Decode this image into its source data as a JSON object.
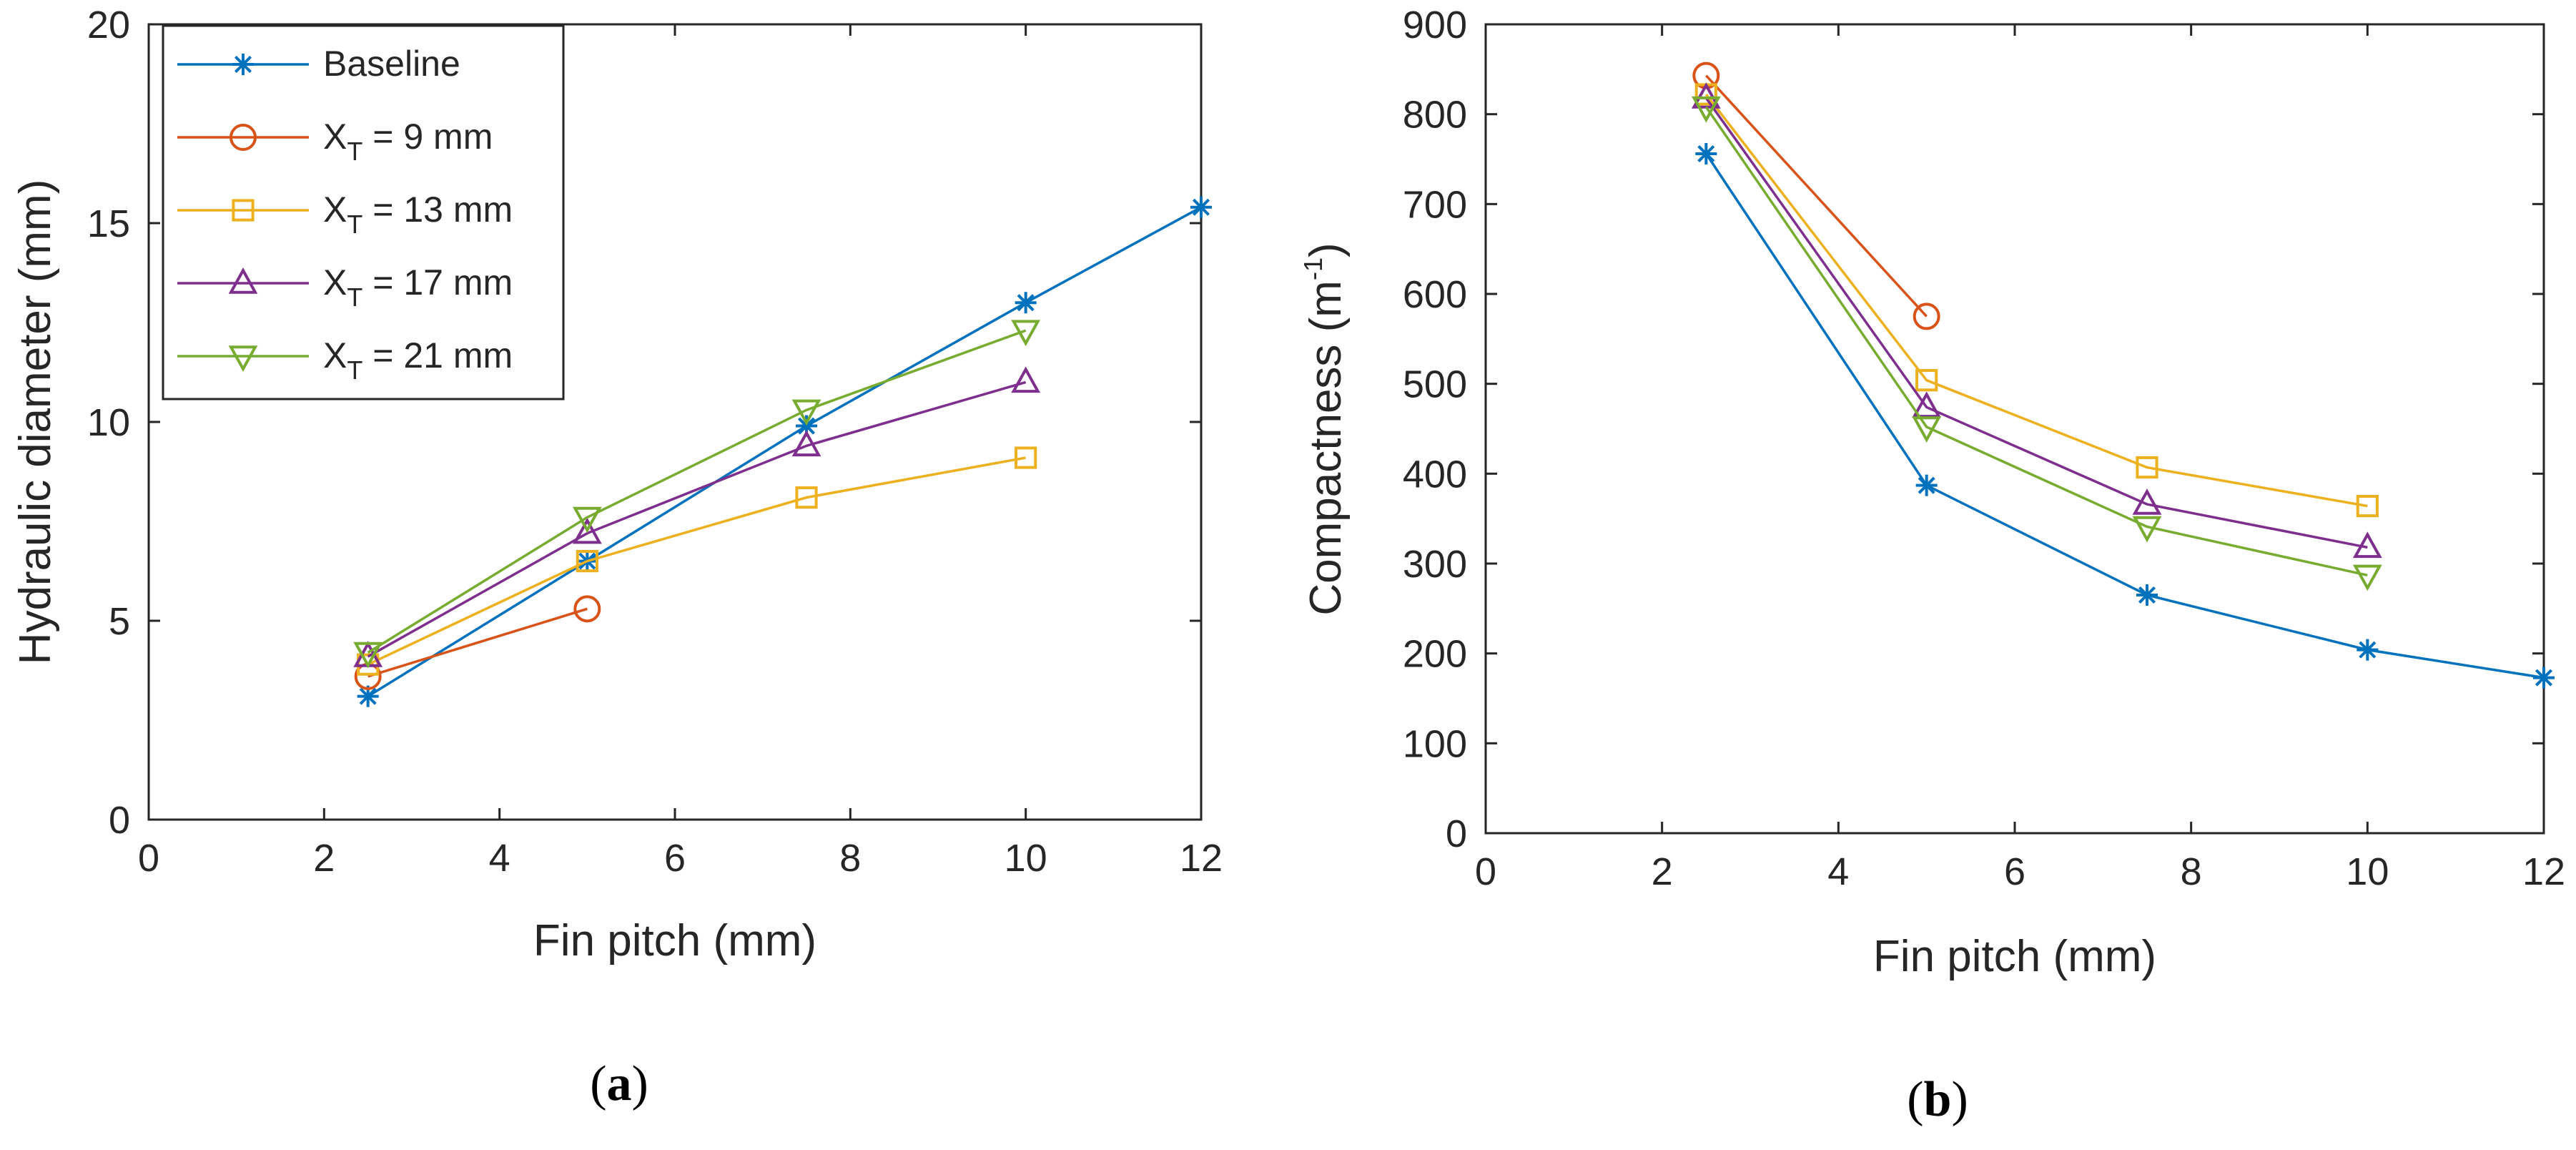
{
  "chart_data": [
    {
      "id": "a",
      "type": "line",
      "caption_letter": "a",
      "xlabel": "Fin pitch (mm)",
      "ylabel": "Hydraulic diameter (mm)",
      "xlim": [
        0,
        12
      ],
      "ylim": [
        0,
        20
      ],
      "xticks": [
        "0",
        "2",
        "4",
        "6",
        "8",
        "10",
        "12"
      ],
      "yticks": [
        "0",
        "5",
        "10",
        "15",
        "20"
      ],
      "grid": false,
      "legend": {
        "position": "top-left",
        "entries": [
          {
            "label": "Baseline"
          },
          {
            "prefix": "X",
            "sub": "T",
            "suffix": " = 9 mm"
          },
          {
            "prefix": "X",
            "sub": "T",
            "suffix": " = 13 mm"
          },
          {
            "prefix": "X",
            "sub": "T",
            "suffix": " = 17 mm"
          },
          {
            "prefix": "X",
            "sub": "T",
            "suffix": " = 21 mm"
          }
        ]
      },
      "series": [
        {
          "name": "Baseline",
          "color": "#0072BD",
          "marker": "asterisk",
          "x": [
            2.5,
            5,
            7.5,
            10,
            12
          ],
          "y": [
            3.1,
            6.5,
            9.9,
            13.0,
            15.4
          ]
        },
        {
          "name": "X_T = 9 mm",
          "color": "#D95319",
          "marker": "circle",
          "x": [
            2.5,
            5
          ],
          "y": [
            3.6,
            5.3
          ]
        },
        {
          "name": "X_T = 13 mm",
          "color": "#EDB120",
          "marker": "square",
          "x": [
            2.5,
            5,
            7.5,
            10
          ],
          "y": [
            3.9,
            6.5,
            8.1,
            9.1
          ]
        },
        {
          "name": "X_T = 17 mm",
          "color": "#7E2F8E",
          "marker": "triangle-up",
          "x": [
            2.5,
            5,
            7.5,
            10
          ],
          "y": [
            4.1,
            7.2,
            9.4,
            11.0
          ]
        },
        {
          "name": "X_T = 21 mm",
          "color": "#77AC30",
          "marker": "triangle-down",
          "x": [
            2.5,
            5,
            7.5,
            10
          ],
          "y": [
            4.2,
            7.6,
            10.3,
            12.3
          ]
        }
      ]
    },
    {
      "id": "b",
      "type": "line",
      "caption_letter": "b",
      "xlabel": "Fin pitch (mm)",
      "ylabel_main": "Compactness (m",
      "ylabel_sup": "-1",
      "ylabel_end": ")",
      "xlim": [
        0,
        12
      ],
      "ylim": [
        0,
        900
      ],
      "xticks": [
        "0",
        "2",
        "4",
        "6",
        "8",
        "10",
        "12"
      ],
      "yticks": [
        "0",
        "100",
        "200",
        "300",
        "400",
        "500",
        "600",
        "700",
        "800",
        "900"
      ],
      "grid": false,
      "series": [
        {
          "name": "Baseline",
          "color": "#0072BD",
          "marker": "asterisk",
          "x": [
            2.5,
            5,
            7.5,
            10,
            12
          ],
          "y": [
            756,
            387,
            265,
            204,
            173
          ]
        },
        {
          "name": "X_T = 9 mm",
          "color": "#D95319",
          "marker": "circle",
          "x": [
            2.5,
            5
          ],
          "y": [
            843,
            575
          ]
        },
        {
          "name": "X_T = 13 mm",
          "color": "#EDB120",
          "marker": "square",
          "x": [
            2.5,
            5,
            7.5,
            10
          ],
          "y": [
            822,
            504,
            407,
            364
          ]
        },
        {
          "name": "X_T = 17 mm",
          "color": "#7E2F8E",
          "marker": "triangle-up",
          "x": [
            2.5,
            5,
            7.5,
            10
          ],
          "y": [
            818,
            474,
            366,
            318
          ]
        },
        {
          "name": "X_T = 21 mm",
          "color": "#77AC30",
          "marker": "triangle-down",
          "x": [
            2.5,
            5,
            7.5,
            10
          ],
          "y": [
            808,
            452,
            341,
            287
          ]
        }
      ]
    }
  ]
}
